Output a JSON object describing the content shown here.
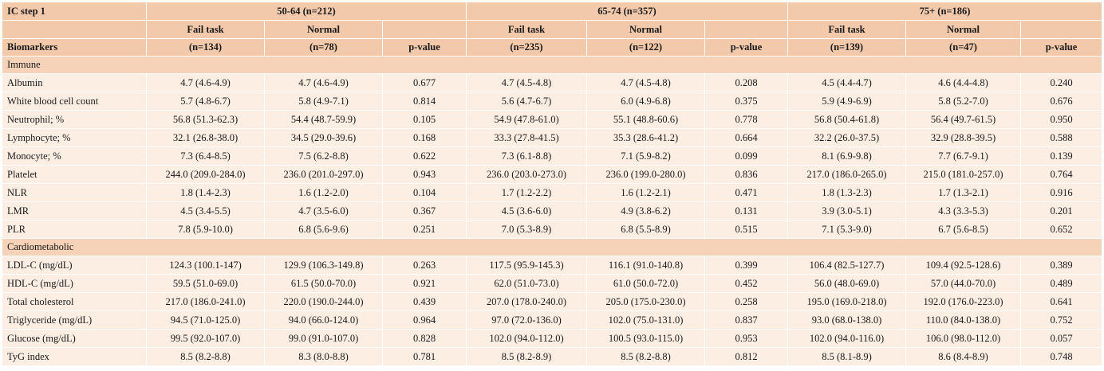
{
  "header": {
    "corner_label": "IC step 1",
    "biomarkers_label": "Biomarkers",
    "groups": [
      {
        "title": "50-64 (n=212)",
        "fail_label": "Fail task",
        "normal_label": "Normal",
        "fail_n": "(n=134)",
        "normal_n": "(n=78)",
        "p_label": "p-value"
      },
      {
        "title": "65-74 (n=357)",
        "fail_label": "Fail task",
        "normal_label": "Normal",
        "fail_n": "(n=235)",
        "normal_n": "(n=122)",
        "p_label": "p-value"
      },
      {
        "title": "75+ (n=186)",
        "fail_label": "Fail task",
        "normal_label": "Normal",
        "fail_n": "(n=139)",
        "normal_n": "(n=47)",
        "p_label": "p-value"
      }
    ]
  },
  "sections": [
    {
      "name": "Immune",
      "rows": [
        {
          "label": "Albumin",
          "values": [
            "4.7 (4.6-4.9)",
            "4.7 (4.6-4.9)",
            "0.677",
            "4.7 (4.5-4.8)",
            "4.7 (4.5-4.8)",
            "0.208",
            "4.5 (4.4-4.7)",
            "4.6 (4.4-4.8)",
            "0.240"
          ]
        },
        {
          "label": "White blood cell count",
          "values": [
            "5.7 (4.8-6.7)",
            "5.8 (4.9-7.1)",
            "0.814",
            "5.6 (4.7-6.7)",
            "6.0 (4.9-6.8)",
            "0.375",
            "5.9 (4.9-6.9)",
            "5.8 (5.2-7.0)",
            "0.676"
          ]
        },
        {
          "label": "Neutrophil; %",
          "values": [
            "56.8 (51.3-62.3)",
            "54.4 (48.7-59.9)",
            "0.105",
            "54.9 (47.8-61.0)",
            "55.1 (48.8-60.6)",
            "0.778",
            "56.8 (50.4-61.8)",
            "56.4 (49.7-61.5)",
            "0.950"
          ]
        },
        {
          "label": "Lymphocyte; %",
          "values": [
            "32.1 (26.8-38.0)",
            "34.5 (29.0-39.6)",
            "0.168",
            "33.3 (27.8-41.5)",
            "35.3 (28.6-41.2)",
            "0.664",
            "32.2 (26.0-37.5)",
            "32.9 (28.8-39.5)",
            "0.588"
          ]
        },
        {
          "label": "Monocyte; %",
          "values": [
            "7.3 (6.4-8.5)",
            "7.5 (6.2-8.8)",
            "0.622",
            "7.3 (6.1-8.8)",
            "7.1 (5.9-8.2)",
            "0.099",
            "8.1 (6.9-9.8)",
            "7.7 (6.7-9.1)",
            "0.139"
          ]
        },
        {
          "label": "Platelet",
          "values": [
            "244.0 (209.0-284.0)",
            "236.0 (201.0-297.0)",
            "0.943",
            "236.0 (203.0-273.0)",
            "236.0 (199.0-280.0)",
            "0.836",
            "217.0 (186.0-265.0)",
            "215.0 (181.0-257.0)",
            "0.764"
          ]
        },
        {
          "label": "NLR",
          "values": [
            "1.8 (1.4-2.3)",
            "1.6 (1.2-2.0)",
            "0.104",
            "1.7 (1.2-2.2)",
            "1.6 (1.2-2.1)",
            "0.471",
            "1.8 (1.3-2.3)",
            "1.7 (1.3-2.1)",
            "0.916"
          ]
        },
        {
          "label": "LMR",
          "values": [
            "4.5 (3.4-5.5)",
            "4.7 (3.5-6.0)",
            "0.367",
            "4.5 (3.6-6.0)",
            "4.9 (3.8-6.2)",
            "0.131",
            "3.9 (3.0-5.1)",
            "4.3 (3.3-5.3)",
            "0.201"
          ]
        },
        {
          "label": "PLR",
          "values": [
            "7.8 (5.9-10.0)",
            "6.8 (5.6-9.6)",
            "0.251",
            "7.0 (5.3-8.9)",
            "6.8 (5.5-8.9)",
            "0.515",
            "7.1 (5.3-9.0)",
            "6.7 (5.6-8.5)",
            "0.652"
          ]
        }
      ]
    },
    {
      "name": "Cardiometabolic",
      "rows": [
        {
          "label": "LDL-C (mg/dL)",
          "values": [
            "124.3 (100.1-147)",
            "129.9 (106.3-149.8)",
            "0.263",
            "117.5 (95.9-145.3)",
            "116.1 (91.0-140.8)",
            "0.399",
            "106.4 (82.5-127.7)",
            "109.4 (92.5-128.6)",
            "0.389"
          ]
        },
        {
          "label": "HDL-C (mg/dL)",
          "values": [
            "59.5 (51.0-69.0)",
            "61.5 (50.0-70.0)",
            "0.921",
            "62.0 (51.0-73.0)",
            "61.0 (50.0-72.0)",
            "0.452",
            "56.0 (48.0-69.0)",
            "57.0 (44.0-70.0)",
            "0.489"
          ]
        },
        {
          "label": "Total cholesterol",
          "values": [
            "217.0 (186.0-241.0)",
            "220.0 (190.0-244.0)",
            "0.439",
            "207.0 (178.0-240.0)",
            "205.0 (175.0-230.0)",
            "0.258",
            "195.0 (169.0-218.0)",
            "192.0 (176.0-223.0)",
            "0.641"
          ]
        },
        {
          "label": "Triglyceride (mg/dL)",
          "values": [
            "94.5 (71.0-125.0)",
            "94.0 (66.0-124.0)",
            "0.964",
            "97.0 (72.0-136.0)",
            "102.0 (75.0-131.0)",
            "0.837",
            "93.0 (68.0-138.0)",
            "110.0 (84.0-138.0)",
            "0.752"
          ]
        },
        {
          "label": "Glucose (mg/dL)",
          "values": [
            "99.5 (92.0-107.0)",
            "99.0 (91.0-107.0)",
            "0.828",
            "102.0 (94.0-112.0)",
            "100.5 (93.0-115.0)",
            "0.953",
            "102.0 (94.0-116.0)",
            "106.0 (98.0-112.0)",
            "0.057"
          ]
        },
        {
          "label": "TyG index",
          "values": [
            "8.5 (8.2-8.8)",
            "8.3 (8.0-8.8)",
            "0.781",
            "8.5 (8.2-8.9)",
            "8.5 (8.2-8.8)",
            "0.812",
            "8.5 (8.1-8.9)",
            "8.6 (8.4-8.9)",
            "0.748"
          ]
        }
      ]
    }
  ]
}
